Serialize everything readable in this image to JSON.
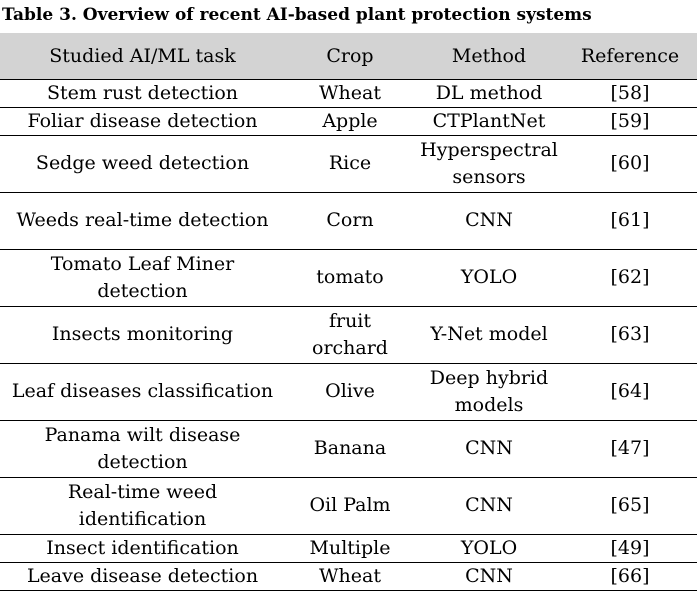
{
  "caption": "Table 3. Overview of recent AI-based plant protection systems",
  "headers": [
    "Studied AI/ML task",
    "Crop",
    "Method",
    "Reference"
  ],
  "rows": [
    [
      "Stem rust detection",
      "Wheat",
      "DL method",
      "[58]"
    ],
    [
      "Foliar disease detection",
      "Apple",
      "CTPlantNet",
      "[59]"
    ],
    [
      "Sedge weed detection",
      "Rice",
      "Hyperspectral sensors",
      "[60]"
    ],
    [
      "Weeds real-time detection",
      "Corn",
      "CNN",
      "[61]"
    ],
    [
      "Tomato Leaf Miner detection",
      "tomato",
      "YOLO",
      "[62]"
    ],
    [
      "Insects monitoring",
      "fruit orchard",
      "Y-Net model",
      "[63]"
    ],
    [
      "Leaf diseases classification",
      "Olive",
      "Deep hybrid models",
      "[64]"
    ],
    [
      "Panama wilt disease detection",
      "Banana",
      "CNN",
      "[47]"
    ],
    [
      "Real-time weed identification",
      "Oil Palm",
      "CNN",
      "[65]"
    ],
    [
      "Insect identification",
      "Multiple",
      "YOLO",
      "[49]"
    ],
    [
      "Leave disease detection",
      "Wheat",
      "CNN",
      "[66]"
    ]
  ]
}
